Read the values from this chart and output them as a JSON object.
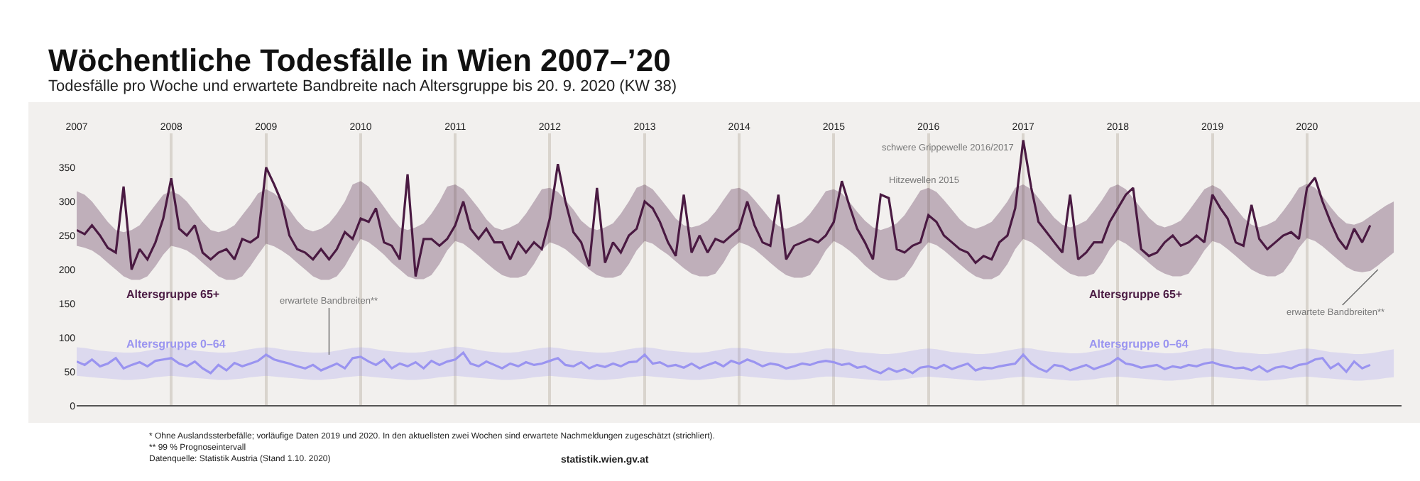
{
  "chart_data": {
    "type": "line",
    "title": "Wöchentliche Todesfälle in Wien 2007–’20",
    "subtitle": "Todesfälle pro Woche und erwartete Bandbreite nach Altersgruppe bis 20. 9. 2020 (KW 38)",
    "x": [
      "2007-01",
      "2007-02",
      "2007-03",
      "2007-04",
      "2007-05",
      "2007-06",
      "2007-07",
      "2007-08",
      "2007-09",
      "2007-10",
      "2007-11",
      "2007-12",
      "2008-01",
      "2008-02",
      "2008-03",
      "2008-04",
      "2008-05",
      "2008-06",
      "2008-07",
      "2008-08",
      "2008-09",
      "2008-10",
      "2008-11",
      "2008-12",
      "2009-01",
      "2009-02",
      "2009-03",
      "2009-04",
      "2009-05",
      "2009-06",
      "2009-07",
      "2009-08",
      "2009-09",
      "2009-10",
      "2009-11",
      "2009-12",
      "2010-01",
      "2010-02",
      "2010-03",
      "2010-04",
      "2010-05",
      "2010-06",
      "2010-07",
      "2010-08",
      "2010-09",
      "2010-10",
      "2010-11",
      "2010-12",
      "2011-01",
      "2011-02",
      "2011-03",
      "2011-04",
      "2011-05",
      "2011-06",
      "2011-07",
      "2011-08",
      "2011-09",
      "2011-10",
      "2011-11",
      "2011-12",
      "2012-01",
      "2012-02",
      "2012-03",
      "2012-04",
      "2012-05",
      "2012-06",
      "2012-07",
      "2012-08",
      "2012-09",
      "2012-10",
      "2012-11",
      "2012-12",
      "2013-01",
      "2013-02",
      "2013-03",
      "2013-04",
      "2013-05",
      "2013-06",
      "2013-07",
      "2013-08",
      "2013-09",
      "2013-10",
      "2013-11",
      "2013-12",
      "2014-01",
      "2014-02",
      "2014-03",
      "2014-04",
      "2014-05",
      "2014-06",
      "2014-07",
      "2014-08",
      "2014-09",
      "2014-10",
      "2014-11",
      "2014-12",
      "2015-01",
      "2015-02",
      "2015-03",
      "2015-04",
      "2015-05",
      "2015-06",
      "2015-07",
      "2015-08",
      "2015-09",
      "2015-10",
      "2015-11",
      "2015-12",
      "2016-01",
      "2016-02",
      "2016-03",
      "2016-04",
      "2016-05",
      "2016-06",
      "2016-07",
      "2016-08",
      "2016-09",
      "2016-10",
      "2016-11",
      "2016-12",
      "2017-01",
      "2017-02",
      "2017-03",
      "2017-04",
      "2017-05",
      "2017-06",
      "2017-07",
      "2017-08",
      "2017-09",
      "2017-10",
      "2017-11",
      "2017-12",
      "2018-01",
      "2018-02",
      "2018-03",
      "2018-04",
      "2018-05",
      "2018-06",
      "2018-07",
      "2018-08",
      "2018-09",
      "2018-10",
      "2018-11",
      "2018-12",
      "2019-01",
      "2019-02",
      "2019-03",
      "2019-04",
      "2019-05",
      "2019-06",
      "2019-07",
      "2019-08",
      "2019-09",
      "2019-10",
      "2019-11",
      "2019-12",
      "2020-01",
      "2020-02",
      "2020-03",
      "2020-04",
      "2020-05",
      "2020-06",
      "2020-07",
      "2020-08",
      "2020-09",
      "2020-10",
      "2020-11",
      "2020-12"
    ],
    "series": [
      {
        "name": "Altersgruppe 65+",
        "color": "#4a1a42",
        "values": [
          258,
          252,
          265,
          250,
          232,
          225,
          322,
          200,
          230,
          215,
          240,
          275,
          334,
          260,
          250,
          265,
          225,
          215,
          225,
          230,
          215,
          245,
          240,
          248,
          350,
          325,
          300,
          250,
          230,
          225,
          215,
          230,
          215,
          230,
          255,
          245,
          275,
          270,
          290,
          240,
          235,
          215,
          340,
          190,
          245,
          245,
          235,
          245,
          265,
          300,
          260,
          245,
          260,
          240,
          240,
          215,
          240,
          225,
          240,
          230,
          275,
          355,
          300,
          255,
          240,
          205,
          320,
          210,
          240,
          225,
          250,
          260,
          300,
          290,
          270,
          240,
          220,
          310,
          225,
          250,
          225,
          245,
          240,
          250,
          260,
          300,
          265,
          240,
          235,
          310,
          215,
          235,
          240,
          245,
          240,
          250,
          270,
          330,
          295,
          260,
          240,
          215,
          310,
          305,
          230,
          225,
          235,
          240,
          280,
          270,
          250,
          240,
          230,
          225,
          210,
          220,
          215,
          240,
          250,
          290,
          390,
          320,
          270,
          255,
          240,
          225,
          310,
          215,
          225,
          240,
          240,
          270,
          290,
          310,
          320,
          230,
          220,
          225,
          240,
          250,
          235,
          240,
          250,
          240,
          310,
          290,
          275,
          240,
          235,
          295,
          245,
          230,
          240,
          250,
          255,
          245,
          320,
          335,
          300,
          270,
          245,
          230,
          260,
          240,
          265,
          null,
          null,
          null
        ],
        "lower": [
          235,
          232,
          228,
          220,
          210,
          200,
          190,
          185,
          185,
          190,
          205,
          222,
          235,
          232,
          228,
          220,
          210,
          200,
          190,
          185,
          185,
          190,
          205,
          222,
          238,
          234,
          228,
          220,
          210,
          200,
          190,
          185,
          185,
          190,
          205,
          225,
          245,
          240,
          232,
          222,
          210,
          200,
          190,
          186,
          186,
          192,
          208,
          228,
          242,
          238,
          230,
          220,
          210,
          200,
          192,
          188,
          188,
          192,
          208,
          228,
          240,
          236,
          230,
          220,
          210,
          200,
          192,
          188,
          188,
          192,
          208,
          228,
          242,
          238,
          230,
          222,
          212,
          202,
          194,
          190,
          190,
          194,
          210,
          230,
          240,
          236,
          230,
          220,
          210,
          200,
          192,
          188,
          188,
          192,
          208,
          228,
          242,
          236,
          228,
          218,
          206,
          196,
          188,
          184,
          184,
          190,
          206,
          226,
          240,
          236,
          228,
          218,
          208,
          198,
          190,
          186,
          186,
          192,
          208,
          230,
          245,
          240,
          232,
          222,
          212,
          202,
          194,
          190,
          190,
          194,
          210,
          230,
          244,
          238,
          230,
          220,
          210,
          200,
          194,
          190,
          190,
          194,
          210,
          228,
          242,
          238,
          230,
          220,
          210,
          200,
          194,
          190,
          190,
          196,
          212,
          232,
          246,
          242,
          234,
          224,
          214,
          204,
          198,
          196,
          198,
          206,
          216,
          225
        ],
        "upper": [
          315,
          310,
          300,
          285,
          270,
          258,
          255,
          258,
          265,
          280,
          295,
          310,
          315,
          310,
          300,
          285,
          270,
          258,
          255,
          258,
          265,
          280,
          295,
          312,
          318,
          312,
          302,
          288,
          272,
          260,
          256,
          260,
          268,
          282,
          300,
          325,
          330,
          322,
          308,
          292,
          276,
          262,
          258,
          262,
          268,
          282,
          300,
          322,
          325,
          318,
          305,
          290,
          274,
          262,
          258,
          262,
          268,
          282,
          300,
          318,
          320,
          314,
          302,
          288,
          272,
          262,
          258,
          262,
          268,
          282,
          300,
          320,
          325,
          318,
          305,
          290,
          275,
          265,
          262,
          265,
          272,
          285,
          302,
          318,
          320,
          314,
          302,
          288,
          274,
          264,
          260,
          264,
          270,
          282,
          298,
          315,
          318,
          312,
          300,
          285,
          272,
          262,
          258,
          262,
          268,
          280,
          298,
          316,
          320,
          314,
          302,
          288,
          274,
          264,
          260,
          264,
          270,
          284,
          300,
          320,
          325,
          318,
          305,
          290,
          276,
          266,
          262,
          266,
          272,
          286,
          302,
          320,
          325,
          318,
          305,
          290,
          276,
          266,
          262,
          266,
          272,
          286,
          302,
          318,
          324,
          318,
          305,
          290,
          276,
          266,
          262,
          266,
          272,
          286,
          302,
          320,
          326,
          320,
          308,
          292,
          278,
          268,
          266,
          270,
          278,
          286,
          294,
          300
        ]
      },
      {
        "name": "Altersgruppe 0–64",
        "color": "#9a94f0",
        "values": [
          65,
          60,
          68,
          58,
          62,
          70,
          55,
          60,
          64,
          58,
          66,
          68,
          70,
          62,
          58,
          65,
          55,
          48,
          60,
          52,
          63,
          58,
          62,
          66,
          75,
          68,
          65,
          62,
          58,
          55,
          60,
          52,
          57,
          62,
          55,
          70,
          72,
          65,
          60,
          68,
          55,
          62,
          58,
          64,
          55,
          66,
          60,
          65,
          68,
          78,
          62,
          58,
          65,
          60,
          55,
          62,
          58,
          64,
          60,
          62,
          66,
          70,
          60,
          58,
          64,
          55,
          60,
          57,
          62,
          58,
          64,
          65,
          75,
          62,
          64,
          58,
          60,
          56,
          62,
          55,
          60,
          64,
          58,
          66,
          62,
          68,
          64,
          58,
          62,
          60,
          55,
          58,
          62,
          60,
          64,
          66,
          64,
          60,
          62,
          56,
          58,
          52,
          48,
          55,
          50,
          54,
          48,
          56,
          58,
          55,
          60,
          54,
          58,
          62,
          52,
          56,
          55,
          58,
          60,
          62,
          75,
          62,
          55,
          50,
          60,
          58,
          52,
          56,
          60,
          54,
          58,
          62,
          70,
          62,
          60,
          56,
          58,
          60,
          54,
          58,
          56,
          60,
          58,
          62,
          64,
          60,
          58,
          55,
          56,
          52,
          58,
          50,
          56,
          58,
          55,
          60,
          62,
          68,
          70,
          55,
          62,
          50,
          65,
          55,
          60,
          null,
          null,
          null
        ],
        "lower": [
          44,
          43,
          42,
          41,
          40,
          39,
          38,
          38,
          39,
          40,
          42,
          43,
          44,
          43,
          42,
          41,
          40,
          39,
          38,
          38,
          39,
          40,
          42,
          43,
          44,
          43,
          42,
          41,
          40,
          39,
          38,
          38,
          39,
          40,
          42,
          43,
          44,
          43,
          42,
          41,
          40,
          39,
          38,
          38,
          39,
          40,
          42,
          43,
          44,
          43,
          42,
          41,
          40,
          39,
          38,
          38,
          39,
          40,
          42,
          43,
          44,
          43,
          42,
          41,
          40,
          39,
          38,
          38,
          39,
          40,
          42,
          43,
          44,
          43,
          42,
          41,
          40,
          39,
          38,
          38,
          39,
          40,
          42,
          43,
          44,
          43,
          42,
          41,
          40,
          39,
          38,
          38,
          39,
          40,
          42,
          43,
          43,
          42,
          41,
          40,
          39,
          38,
          37,
          37,
          38,
          39,
          41,
          42,
          43,
          42,
          41,
          40,
          39,
          38,
          37,
          37,
          38,
          39,
          41,
          42,
          43,
          42,
          41,
          40,
          39,
          38,
          37,
          37,
          38,
          39,
          41,
          42,
          43,
          42,
          41,
          40,
          39,
          38,
          37,
          37,
          38,
          39,
          41,
          42,
          43,
          42,
          41,
          40,
          39,
          38,
          37,
          37,
          38,
          39,
          41,
          42,
          43,
          42,
          41,
          40,
          39,
          38,
          37,
          37,
          38,
          39,
          41,
          42
        ],
        "upper": [
          86,
          85,
          83,
          81,
          80,
          79,
          78,
          78,
          79,
          81,
          83,
          85,
          86,
          85,
          83,
          81,
          80,
          79,
          78,
          78,
          79,
          81,
          83,
          85,
          86,
          85,
          83,
          81,
          80,
          79,
          78,
          78,
          79,
          81,
          83,
          85,
          86,
          85,
          83,
          81,
          80,
          79,
          78,
          78,
          79,
          81,
          83,
          85,
          87,
          86,
          84,
          82,
          80,
          79,
          78,
          78,
          79,
          81,
          83,
          85,
          86,
          85,
          83,
          81,
          80,
          79,
          78,
          78,
          79,
          81,
          83,
          85,
          86,
          85,
          83,
          81,
          80,
          79,
          78,
          78,
          79,
          81,
          83,
          85,
          85,
          84,
          82,
          80,
          79,
          78,
          77,
          77,
          78,
          80,
          82,
          84,
          84,
          83,
          81,
          79,
          78,
          77,
          76,
          76,
          77,
          79,
          81,
          83,
          84,
          83,
          81,
          79,
          78,
          77,
          76,
          76,
          77,
          79,
          81,
          83,
          85,
          84,
          82,
          80,
          79,
          78,
          77,
          77,
          78,
          80,
          82,
          84,
          85,
          84,
          82,
          80,
          79,
          78,
          77,
          77,
          78,
          80,
          82,
          84,
          84,
          83,
          81,
          79,
          78,
          77,
          76,
          76,
          77,
          79,
          81,
          83,
          84,
          83,
          81,
          79,
          78,
          77,
          76,
          76,
          77,
          79,
          81,
          83
        ]
      }
    ],
    "xlim": [
      "2007-01-01",
      "2020-12-31"
    ],
    "xticks": [
      "2007",
      "2008",
      "2009",
      "2010",
      "2011",
      "2012",
      "2013",
      "2014",
      "2015",
      "2016",
      "2017",
      "2018",
      "2019",
      "2020"
    ],
    "ylim": [
      0,
      400
    ],
    "yticks": [
      0,
      50,
      100,
      150,
      200,
      250,
      300,
      350
    ],
    "grid": "x",
    "legend": false,
    "annotations": [
      {
        "text": "erwartete Bandbreiten**",
        "x": "2009-09",
        "y": 75
      },
      {
        "text": "Hitzewellen 2015",
        "x": "2015-07",
        "y": 310
      },
      {
        "text": "schwere Grippewelle 2016/2017",
        "x": "2017-01",
        "y": 390
      },
      {
        "text": "erwartete Bandbreiten**",
        "x": "2020-10",
        "y": 200
      },
      "* Ohne Auslandssterbefälle; vorläufige Daten 2019 und 2020. In den aktuellsten zwei Wochen sind erwartete Nachmeldungen zugeschätzt (strichliert).",
      "** 99 % Prognoseintervall",
      "Datenquelle: Statistik Austria (Stand 1.10. 2020)",
      "statistik.wien.gv.at"
    ]
  }
}
